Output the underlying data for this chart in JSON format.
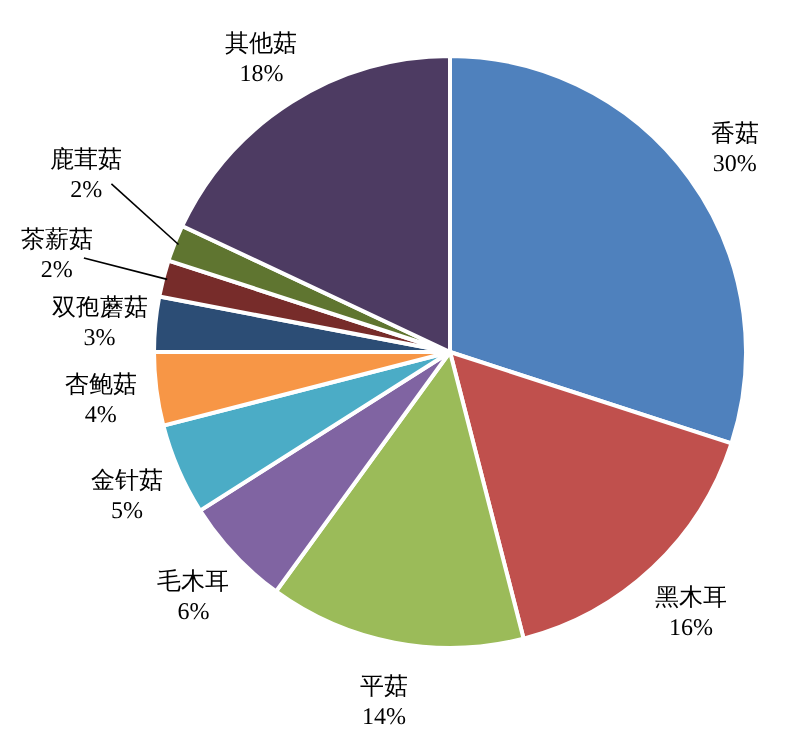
{
  "chart_data": {
    "type": "pie",
    "categories": [
      "香菇",
      "黑木耳",
      "平菇",
      "毛木耳",
      "金针菇",
      "杏鲍菇",
      "双孢蘑菇",
      "茶薪菇",
      "鹿茸菇",
      "其他菇"
    ],
    "values": [
      30,
      16,
      14,
      6,
      5,
      4,
      3,
      2,
      2,
      18
    ],
    "colors": [
      "#4f81bd",
      "#c0504d",
      "#9bbb59",
      "#8064a2",
      "#4bacc6",
      "#f79646",
      "#2c4d75",
      "#772c2a",
      "#5f7530",
      "#4d3b62"
    ],
    "value_labels": [
      "30%",
      "16%",
      "14%",
      "6%",
      "5%",
      "4%",
      "3%",
      "2%",
      "2%",
      "18%"
    ]
  }
}
